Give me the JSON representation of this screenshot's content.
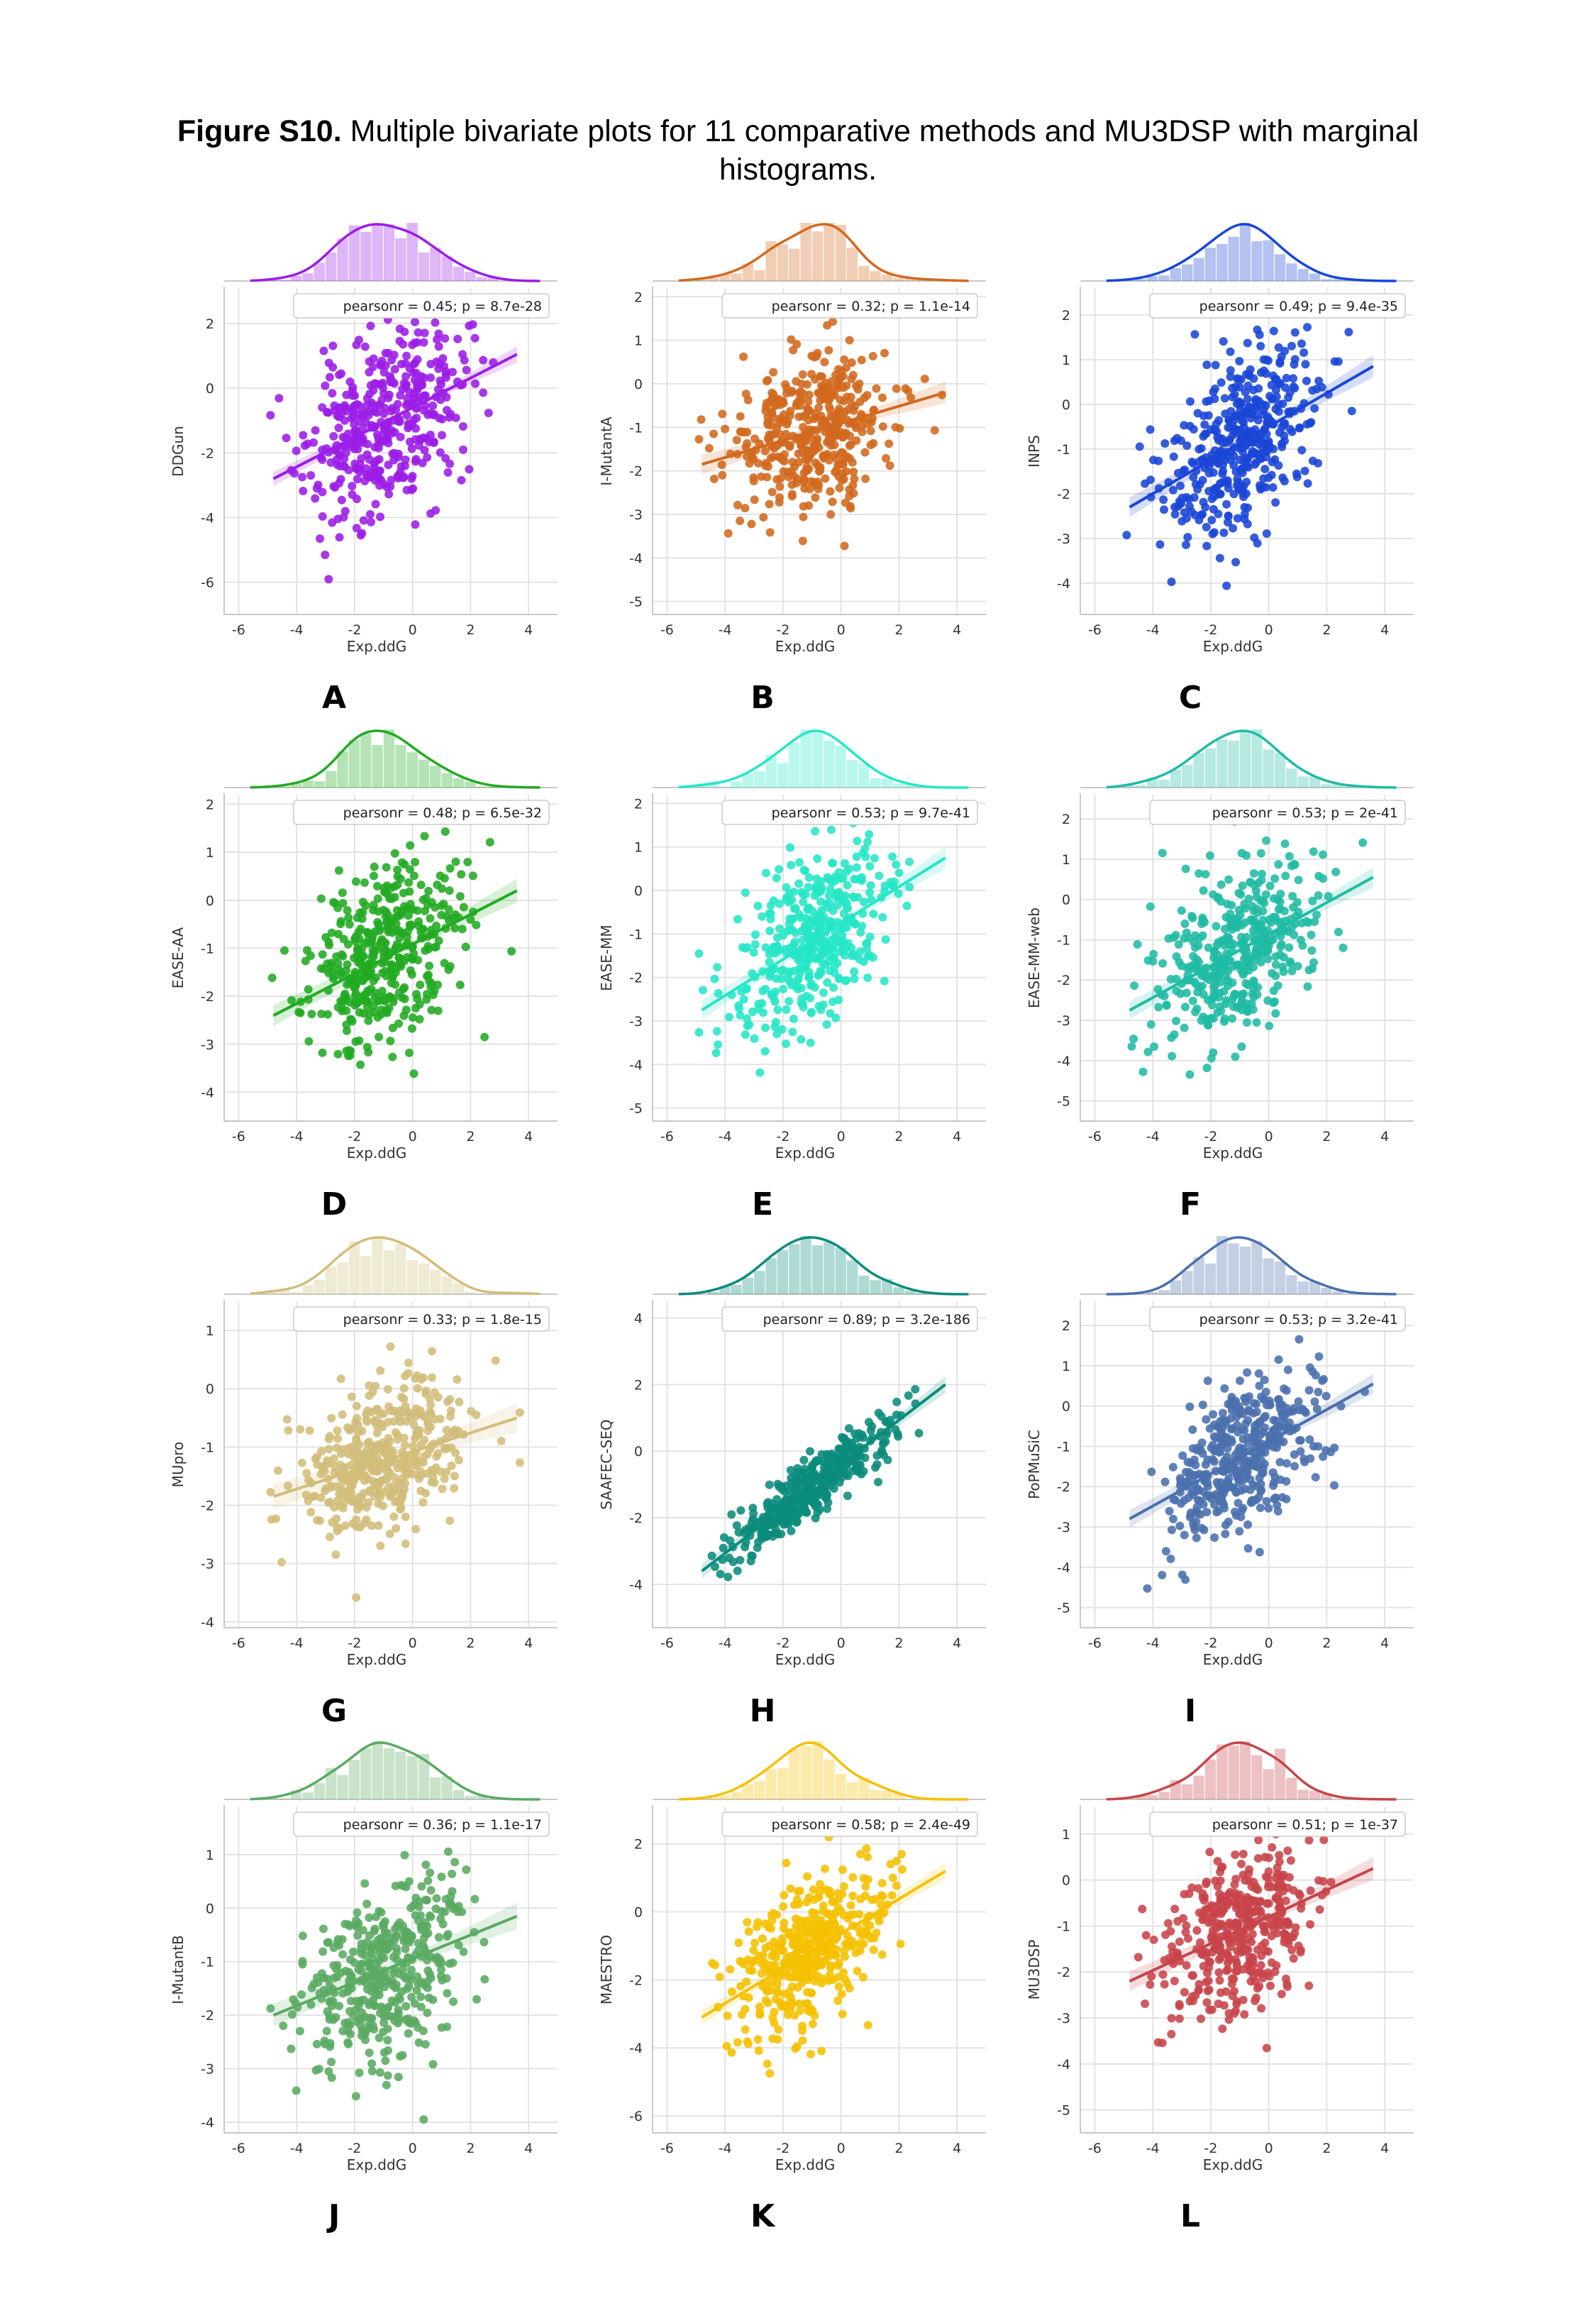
{
  "caption": {
    "label": "Figure S10.",
    "text": "Multiple bivariate plots for 11 comparative methods and MU3DSP with marginal histograms."
  },
  "shared": {
    "xlabel": "Exp.ddG",
    "xlim": [
      -6.5,
      5
    ],
    "xticks": [
      -6,
      -4,
      -2,
      0,
      2,
      4
    ]
  },
  "chart_data": [
    {
      "type": "scatter",
      "panel": "A",
      "ylabel": "DDGun",
      "color": "#9b1de6",
      "r": 0.45,
      "p": "8.7e-28",
      "annotation": "pearsonr = 0.45; p = 8.7e-28",
      "ylim": [
        -7,
        3.1
      ],
      "yticks": [
        -6,
        -4,
        -2,
        0,
        2
      ],
      "fit_y": [
        -2.8,
        1.05
      ],
      "ymean": -1.0,
      "noise": 1.4,
      "seed": 11
    },
    {
      "type": "scatter",
      "panel": "B",
      "ylabel": "I-MutantA",
      "color": "#d2691e",
      "r": 0.32,
      "p": "1.1e-14",
      "annotation": "pearsonr = 0.32; p = 1.1e-14",
      "ylim": [
        -5.3,
        2.2
      ],
      "yticks": [
        -5,
        -4,
        -3,
        -2,
        -1,
        0,
        1,
        2
      ],
      "fit_y": [
        -1.85,
        -0.2
      ],
      "ymean": -1.1,
      "noise": 0.85,
      "seed": 22
    },
    {
      "type": "scatter",
      "panel": "C",
      "ylabel": "INPS",
      "color": "#1a45d6",
      "r": 0.49,
      "p": "9.4e-35",
      "annotation": "pearsonr = 0.49; p = 9.4e-35",
      "ylim": [
        -4.7,
        2.6
      ],
      "yticks": [
        -4,
        -3,
        -2,
        -1,
        0,
        1,
        2
      ],
      "fit_y": [
        -2.3,
        0.85
      ],
      "ymean": -0.8,
      "noise": 0.95,
      "seed": 33
    },
    {
      "type": "scatter",
      "panel": "D",
      "ylabel": "EASE-AA",
      "color": "#22aa22",
      "r": 0.48,
      "p": "6.5e-32",
      "annotation": "pearsonr = 0.48; p = 6.5e-32",
      "ylim": [
        -4.6,
        2.2
      ],
      "yticks": [
        -4,
        -3,
        -2,
        -1,
        0,
        1,
        2
      ],
      "fit_y": [
        -2.4,
        0.2
      ],
      "ymean": -1.1,
      "noise": 0.85,
      "seed": 44
    },
    {
      "type": "scatter",
      "panel": "E",
      "ylabel": "EASE-MM",
      "color": "#26e6c6",
      "r": 0.53,
      "p": "9.7e-41",
      "annotation": "pearsonr = 0.53; p = 9.7e-41",
      "ylim": [
        -5.3,
        2.2
      ],
      "yticks": [
        -5,
        -4,
        -3,
        -2,
        -1,
        0,
        1,
        2
      ],
      "fit_y": [
        -2.75,
        0.75
      ],
      "ymean": -1.1,
      "noise": 0.95,
      "seed": 55
    },
    {
      "type": "scatter",
      "panel": "F",
      "ylabel": "EASE-MM-web",
      "color": "#20bba4",
      "r": 0.53,
      "p": "2e-41",
      "annotation": "pearsonr = 0.53; p = 2e-41",
      "ylim": [
        -5.5,
        2.6
      ],
      "yticks": [
        -5,
        -4,
        -3,
        -2,
        -1,
        0,
        1,
        2
      ],
      "fit_y": [
        -2.75,
        0.55
      ],
      "ymean": -1.1,
      "noise": 0.95,
      "seed": 66
    },
    {
      "type": "scatter",
      "panel": "G",
      "ylabel": "MUpro",
      "color": "#d2bd7a",
      "r": 0.33,
      "p": "1.8e-15",
      "annotation": "pearsonr = 0.33; p = 1.8e-15",
      "ylim": [
        -4.1,
        1.5
      ],
      "yticks": [
        -4,
        -3,
        -2,
        -1,
        0,
        1
      ],
      "fit_y": [
        -1.85,
        -0.5
      ],
      "ymean": -1.1,
      "noise": 0.65,
      "seed": 77
    },
    {
      "type": "scatter",
      "panel": "H",
      "ylabel": "SAAFEC-SEQ",
      "color": "#0b8b7b",
      "r": 0.89,
      "p": "3.2e-186",
      "annotation": "pearsonr = 0.89; p = 3.2e-186",
      "ylim": [
        -5.3,
        4.5
      ],
      "yticks": [
        -4,
        -2,
        0,
        2,
        4
      ],
      "fit_y": [
        -3.6,
        2.0
      ],
      "ymean": -1.0,
      "noise": 0.45,
      "seed": 88
    },
    {
      "type": "scatter",
      "panel": "I",
      "ylabel": "PoPMuSiC",
      "color": "#4a6fad",
      "r": 0.53,
      "p": "3.2e-41",
      "annotation": "pearsonr = 0.53; p = 3.2e-41",
      "ylim": [
        -5.5,
        2.6
      ],
      "yticks": [
        -5,
        -4,
        -3,
        -2,
        -1,
        0,
        1,
        2
      ],
      "fit_y": [
        -2.8,
        0.55
      ],
      "ymean": -1.1,
      "noise": 0.9,
      "seed": 99
    },
    {
      "type": "scatter",
      "panel": "J",
      "ylabel": "I-MutantB",
      "color": "#5aaa62",
      "r": 0.36,
      "p": "1.1e-17",
      "annotation": "pearsonr = 0.36; p = 1.1e-17",
      "ylim": [
        -4.2,
        1.9
      ],
      "yticks": [
        -4,
        -3,
        -2,
        -1,
        0,
        1
      ],
      "fit_y": [
        -2.0,
        -0.15
      ],
      "ymean": -1.1,
      "noise": 0.8,
      "seed": 111
    },
    {
      "type": "scatter",
      "panel": "K",
      "ylabel": "MAESTRO",
      "color": "#f5c000",
      "r": 0.58,
      "p": "2.4e-49",
      "annotation": "pearsonr = 0.58; p = 2.4e-49",
      "ylim": [
        -6.5,
        3.1
      ],
      "yticks": [
        -6,
        -4,
        -2,
        0,
        2
      ],
      "fit_y": [
        -3.1,
        1.2
      ],
      "ymean": -1.0,
      "noise": 1.05,
      "seed": 122
    },
    {
      "type": "scatter",
      "panel": "L",
      "ylabel": "MU3DSP",
      "color": "#c8444a",
      "r": 0.51,
      "p": "1e-37",
      "annotation": "pearsonr = 0.51; p = 1e-37",
      "ylim": [
        -5.5,
        1.6
      ],
      "yticks": [
        -5,
        -4,
        -3,
        -2,
        -1,
        0,
        1
      ],
      "fit_y": [
        -2.2,
        0.25
      ],
      "ymean": -1.0,
      "noise": 0.85,
      "seed": 133
    }
  ]
}
